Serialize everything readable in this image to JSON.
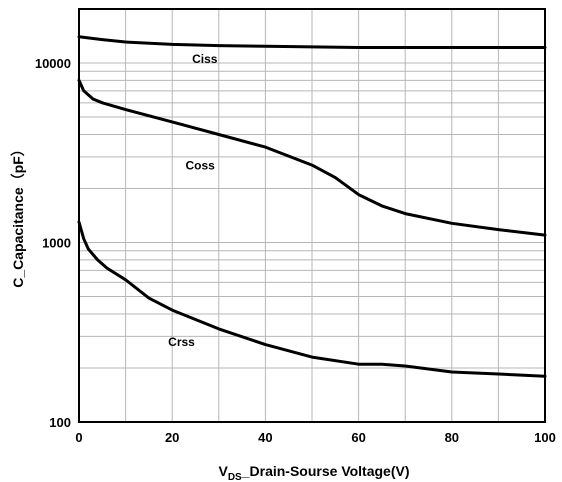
{
  "chart_data": {
    "type": "line",
    "xlabel_main": "V",
    "xlabel_sub": "DS",
    "xlabel_rest": "_Drain-Sourse Voltage(V)",
    "ylabel": "C_Capacitance（pF）",
    "xlim": [
      0,
      100
    ],
    "ylim": [
      100,
      20000
    ],
    "yscale": "log",
    "grid": true,
    "x_ticks": [
      0,
      20,
      40,
      60,
      80,
      100
    ],
    "x_tick_labels": [
      "0",
      "20",
      "40",
      "60",
      "80",
      "100"
    ],
    "y_ticks": [
      100,
      1000,
      10000
    ],
    "y_tick_labels": [
      "100",
      "1000",
      "10000"
    ],
    "series": [
      {
        "name": "Ciss",
        "x": [
          0,
          5,
          10,
          20,
          30,
          40,
          50,
          60,
          70,
          80,
          90,
          100
        ],
        "values": [
          14000,
          13500,
          13100,
          12700,
          12500,
          12400,
          12300,
          12200,
          12200,
          12200,
          12200,
          12200
        ]
      },
      {
        "name": "Coss",
        "x": [
          0,
          1,
          3,
          5,
          10,
          20,
          30,
          40,
          50,
          55,
          60,
          65,
          70,
          80,
          90,
          100
        ],
        "values": [
          8000,
          7000,
          6300,
          6000,
          5500,
          4700,
          4000,
          3400,
          2700,
          2300,
          1850,
          1600,
          1450,
          1280,
          1180,
          1100
        ]
      },
      {
        "name": "Crss",
        "x": [
          0,
          1,
          2,
          4,
          6,
          10,
          15,
          20,
          30,
          40,
          50,
          60,
          65,
          70,
          80,
          90,
          100
        ],
        "values": [
          1300,
          1050,
          920,
          800,
          720,
          620,
          490,
          420,
          330,
          270,
          230,
          210,
          210,
          205,
          190,
          185,
          180
        ]
      }
    ]
  }
}
